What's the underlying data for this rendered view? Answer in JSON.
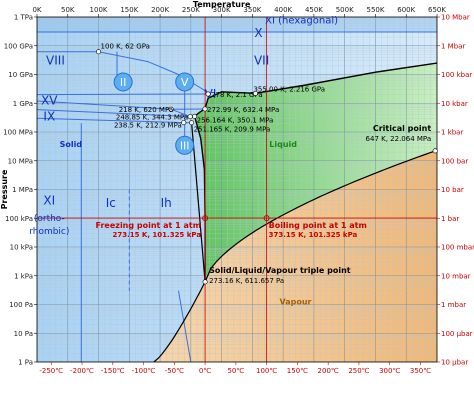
{
  "chart_data": {
    "type": "area",
    "title": "",
    "xlabel": "Temperature",
    "ylabel": "Pressure",
    "x_unit": "K",
    "y_scale": "log",
    "xlim": [
      0,
      650
    ],
    "ylim_pa": [
      1,
      1000000000000.0
    ],
    "x_ticks_top": [
      "0K",
      "50K",
      "100K",
      "150K",
      "200K",
      "250K",
      "300K",
      "350K",
      "400K",
      "450K",
      "500K",
      "550K",
      "600K",
      "650K"
    ],
    "x_ticks_top_values": [
      0,
      50,
      100,
      150,
      200,
      250,
      300,
      350,
      400,
      450,
      500,
      550,
      600,
      650
    ],
    "x_ticks_bottom": [
      "-250℃",
      "-200℃",
      "-150℃",
      "-100℃",
      "-50℃",
      "0℃",
      "50℃",
      "100℃",
      "150℃",
      "200℃",
      "250℃",
      "300℃",
      "350℃"
    ],
    "x_ticks_bottom_values_k": [
      23.15,
      73.15,
      123.15,
      173.15,
      223.15,
      273.15,
      323.15,
      373.15,
      423.15,
      473.15,
      523.15,
      573.15,
      623.15
    ],
    "y_ticks_left": [
      "1 TPa",
      "100 GPa",
      "10 GPa",
      "1 GPa",
      "100 MPa",
      "10 MPa",
      "1 MPa",
      "100 kPa",
      "10 kPa",
      "1 kPa",
      "100 Pa",
      "10 Pa",
      "1 Pa"
    ],
    "y_ticks_left_exp": [
      12,
      11,
      10,
      9,
      8,
      7,
      6,
      5,
      4,
      3,
      2,
      1,
      0
    ],
    "y_ticks_right": [
      "10 Mbar",
      "1 Mbar",
      "100 kbar",
      "10 kbar",
      "1 kbar",
      "100 bar",
      "10 bar",
      "1 bar",
      "100 mbar",
      "10 mbar",
      "1 mbar",
      "100 μbar",
      "10 μbar"
    ],
    "y_ticks_right_exp": [
      12,
      11,
      10,
      9,
      8,
      7,
      6,
      5,
      4,
      3,
      2,
      1,
      0
    ],
    "regions": [
      {
        "label": "Solid",
        "x": 55,
        "p": 30000000.0
      },
      {
        "label": "Liquid",
        "x": 400,
        "p": 30000000.0
      },
      {
        "label": "Vapour",
        "x": 420,
        "p": 100
      }
    ],
    "phases": [
      {
        "label": "XI (hexagonal)",
        "x": 430,
        "p": 600000000000.0
      },
      {
        "label": "X",
        "x": 360,
        "p": 200000000000.0
      },
      {
        "label": "VIII",
        "x": 30,
        "p": 22000000000.0
      },
      {
        "label": "VII",
        "x": 365,
        "p": 22000000000.0
      },
      {
        "label": "II",
        "x": 140,
        "p": 4000000000.0
      },
      {
        "label": "V",
        "x": 240,
        "p": 4000000000.0
      },
      {
        "label": "VI",
        "x": 282,
        "p": 1500000000.0
      },
      {
        "label": "XV",
        "x": 20,
        "p": 900000000.0
      },
      {
        "label": "IX",
        "x": 20,
        "p": 250000000.0
      },
      {
        "label": "III",
        "x": 240,
        "p": 25000000.0
      },
      {
        "label": "XI",
        "x": 20,
        "p": 300000.0
      },
      {
        "label": "(ortho-",
        "x": 20,
        "p": 80000.0
      },
      {
        "label": "rhombic)",
        "x": 20,
        "p": 28000.0
      },
      {
        "label": "Ic",
        "x": 120,
        "p": 250000.0
      },
      {
        "label": "Ih",
        "x": 210,
        "p": 250000.0
      }
    ],
    "annotations": [
      {
        "label": "100 K, 62 GPa",
        "x": 100,
        "p": 62000000000.0
      },
      {
        "label": "278 K, 2.1 GPa",
        "x": 278,
        "p": 2100000000.0
      },
      {
        "label": "355.00 K, 2.216 GPa",
        "x": 355,
        "p": 2216000000.0
      },
      {
        "label": "218 K, 620 MPa",
        "x": 218,
        "p": 620000000.0
      },
      {
        "label": "272.99 K, 632.4 MPa",
        "x": 272.99,
        "p": 632400000.0
      },
      {
        "label": "248.85 K, 344.3 MPa",
        "x": 248.85,
        "p": 344300000.0
      },
      {
        "label": "256.164 K, 350.1 MPa",
        "x": 256.164,
        "p": 350100000.0
      },
      {
        "label": "251.165 K, 209.9 MPa",
        "x": 251.165,
        "p": 209900000.0
      },
      {
        "label": "238.5 K, 212.9 MPa",
        "x": 238.5,
        "p": 212900000.0
      },
      {
        "label": "Critical point",
        "label2": "647 K, 22.064 MPa",
        "x": 647,
        "p": 22064000.0
      },
      {
        "label": "Freezing point at 1 atm",
        "label2": "273.15 K, 101.325 kPa",
        "x": 273.15,
        "p": 101325
      },
      {
        "label": "Boiling point at 1 atm",
        "label2": "373.15 K, 101.325 kPa",
        "x": 373.15,
        "p": 101325
      },
      {
        "label": "Solid/Liquid/Vapour triple point",
        "label2": "273.16 K, 611.657 Pa",
        "x": 273.16,
        "p": 611.657
      }
    ],
    "triple_point": {
      "x": 273.16,
      "p": 611.657
    },
    "critical_point": {
      "x": 647,
      "p": 22064000.0
    },
    "freezing_point": {
      "x": 273.15,
      "p": 101325
    },
    "boiling_point": {
      "x": 373.15,
      "p": 101325
    },
    "grid": true,
    "colors": {
      "solid": "#9cc9ef",
      "liquid": "#8fd98f",
      "vapour": "#f3c691",
      "boundary": "#000000",
      "solid_lines": "#3a6fe0",
      "reference": "#cc0000",
      "phase_text": "#1030c0"
    }
  }
}
